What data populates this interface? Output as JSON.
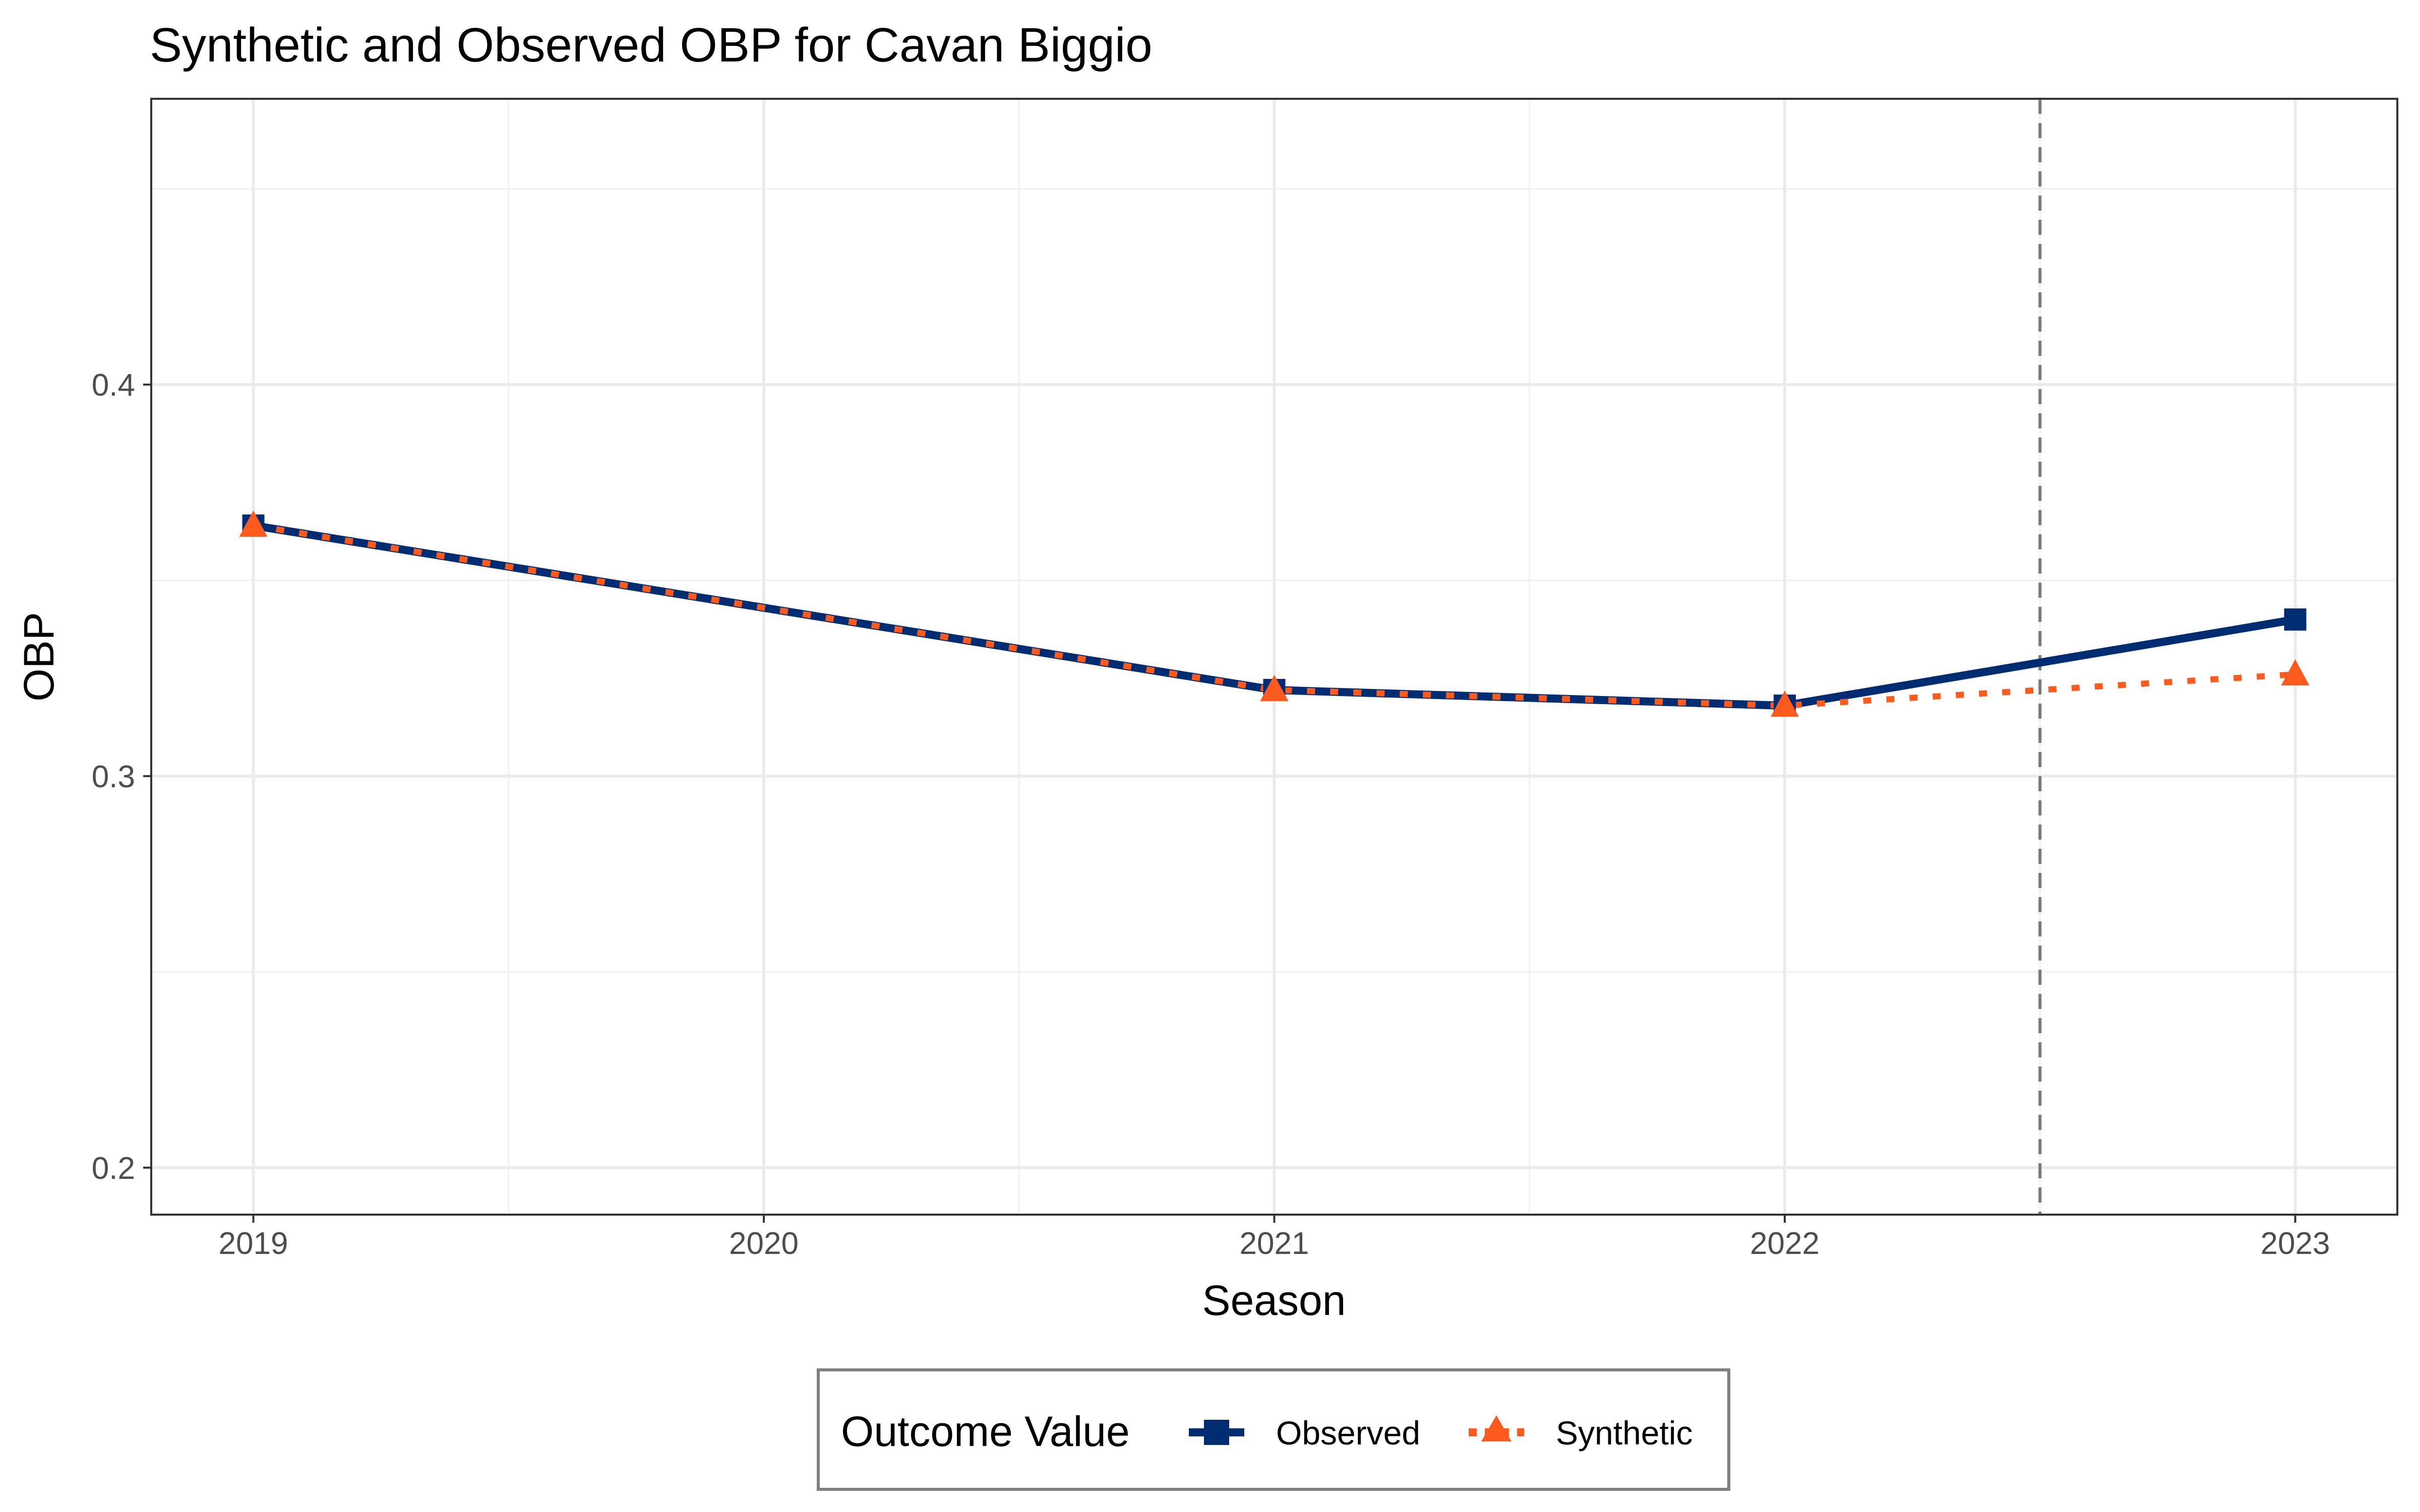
{
  "chart_data": {
    "type": "line",
    "title": "Synthetic and Observed OBP for Cavan Biggio",
    "xlabel": "Season",
    "ylabel": "OBP",
    "x": [
      2019,
      2020,
      2021,
      2022,
      2023
    ],
    "x_ticks": [
      "2019",
      "2020",
      "2021",
      "2022",
      "2023"
    ],
    "y_ticks": [
      0.2,
      0.3,
      0.4
    ],
    "y_tick_labels": [
      "0.2",
      "0.3",
      "0.4"
    ],
    "xlim": [
      2018.8,
      2023.2
    ],
    "ylim": [
      0.188,
      0.473
    ],
    "treatment_line_x": 2022.5,
    "grid": true,
    "legend_title": "Outcome Value",
    "legend_position": "bottom",
    "series": [
      {
        "name": "Observed",
        "color": "#002d72",
        "marker": "square",
        "line": "solid",
        "points": [
          {
            "x": 2019,
            "y": 0.364
          },
          {
            "x": 2021,
            "y": 0.322
          },
          {
            "x": 2022,
            "y": 0.318
          },
          {
            "x": 2023,
            "y": 0.34
          }
        ]
      },
      {
        "name": "Synthetic",
        "color": "#fd5a1e",
        "marker": "triangle",
        "line": "dotted",
        "points": [
          {
            "x": 2019,
            "y": 0.364
          },
          {
            "x": 2021,
            "y": 0.322
          },
          {
            "x": 2022,
            "y": 0.318
          },
          {
            "x": 2023,
            "y": 0.326
          }
        ]
      }
    ]
  }
}
